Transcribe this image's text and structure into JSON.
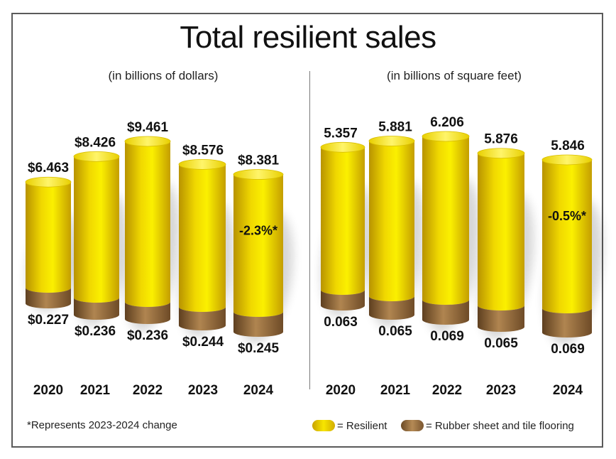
{
  "title": "Total resilient sales",
  "footnote": "*Represents 2023-2024 change",
  "legend": {
    "resilient": "= Resilient",
    "rubber": "= Rubber sheet and tile flooring",
    "resilient_color": "#f2dc00",
    "rubber_color": "#a0774a"
  },
  "chart_data": [
    {
      "type": "bar",
      "subtitle": "(in billions of dollars)",
      "categories": [
        "2020",
        "2021",
        "2022",
        "2023",
        "2024"
      ],
      "series": [
        {
          "name": "Resilient",
          "values": [
            6.463,
            8.426,
            9.461,
            8.576,
            8.381
          ]
        },
        {
          "name": "Rubber sheet and tile flooring",
          "values": [
            0.227,
            0.236,
            0.236,
            0.244,
            0.245
          ]
        }
      ],
      "total_labels": [
        "$6.463",
        "$8.426",
        "$9.461",
        "$8.576",
        "$8.381"
      ],
      "rubber_labels": [
        "$0.227",
        "$0.236",
        "$0.236",
        "$0.244",
        "$0.245"
      ],
      "change_label": "-2.3%*"
    },
    {
      "type": "bar",
      "subtitle": "(in billions of square feet)",
      "categories": [
        "2020",
        "2021",
        "2022",
        "2023",
        "2024"
      ],
      "series": [
        {
          "name": "Resilient",
          "values": [
            5.357,
            5.881,
            6.206,
            5.876,
            5.846
          ]
        },
        {
          "name": "Rubber sheet and tile flooring",
          "values": [
            0.063,
            0.065,
            0.069,
            0.065,
            0.069
          ]
        }
      ],
      "total_labels": [
        "5.357",
        "5.881",
        "6.206",
        "5.876",
        "5.846"
      ],
      "rubber_labels": [
        "0.063",
        "0.065",
        "0.069",
        "0.065",
        "0.069"
      ],
      "change_label": "-0.5%*"
    }
  ]
}
